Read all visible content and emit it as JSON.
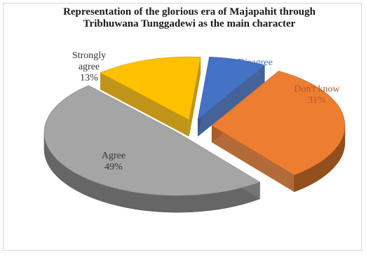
{
  "chart_data": {
    "type": "pie",
    "title_lines": [
      "Representation of the glorious era  of Majapahit through",
      "Tribhuwana  Tunggadewi as the main character"
    ],
    "categories": [
      "Disagree",
      "Don't know",
      "Agree",
      "Strongly agree"
    ],
    "values": [
      7,
      31,
      49,
      13
    ],
    "value_labels": [
      "7%",
      "31%",
      "49%",
      "13%"
    ],
    "label_lines": [
      [
        "Disagree"
      ],
      [
        "Don't know"
      ],
      [
        "Agree"
      ],
      [
        "Strongly",
        "agree"
      ]
    ],
    "colors": [
      "#4472c4",
      "#ed7d31",
      "#a5a5a5",
      "#ffc000"
    ],
    "exploded": true,
    "three_d": true
  }
}
